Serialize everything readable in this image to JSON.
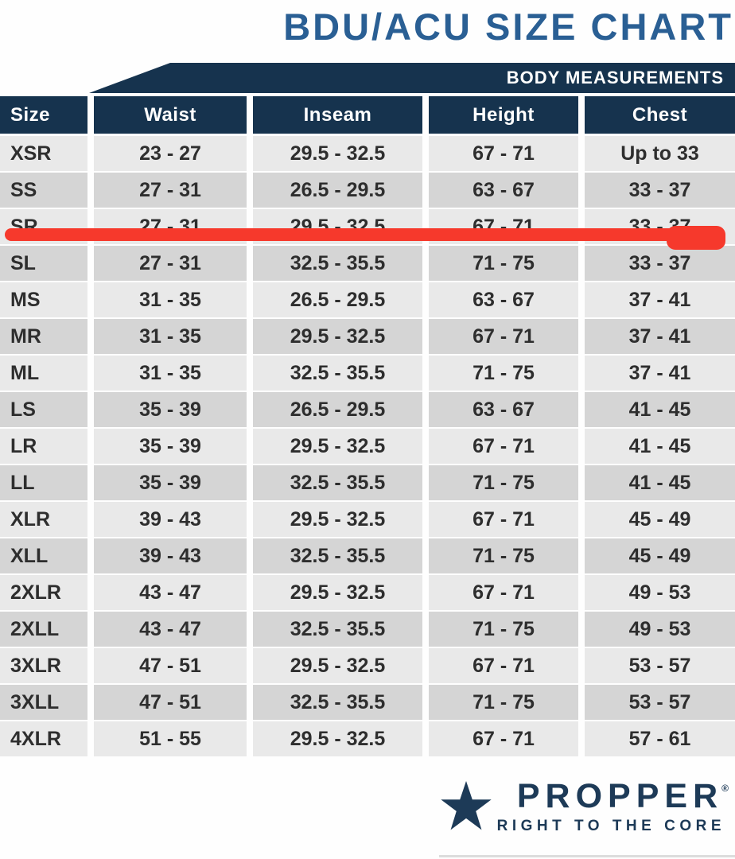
{
  "title": "BDU/ACU SIZE CHART",
  "banner_label": "BODY MEASUREMENTS",
  "chart_data": {
    "type": "table",
    "title": "BDU/ACU SIZE CHART",
    "group_header": "BODY MEASUREMENTS",
    "columns": [
      "Size",
      "Waist",
      "Inseam",
      "Height",
      "Chest"
    ],
    "rows": [
      {
        "size": "XSR",
        "waist": "23 - 27",
        "inseam": "29.5 - 32.5",
        "height": "67 - 71",
        "chest": "Up to 33"
      },
      {
        "size": "SS",
        "waist": "27 - 31",
        "inseam": "26.5 - 29.5",
        "height": "63 - 67",
        "chest": "33 - 37"
      },
      {
        "size": "SR",
        "waist": "27 - 31",
        "inseam": "29.5 - 32.5",
        "height": "67 - 71",
        "chest": "33 - 37"
      },
      {
        "size": "SL",
        "waist": "27 - 31",
        "inseam": "32.5 - 35.5",
        "height": "71 - 75",
        "chest": "33 - 37"
      },
      {
        "size": "MS",
        "waist": "31 - 35",
        "inseam": "26.5 - 29.5",
        "height": "63 - 67",
        "chest": "37 - 41"
      },
      {
        "size": "MR",
        "waist": "31 - 35",
        "inseam": "29.5 - 32.5",
        "height": "67 - 71",
        "chest": "37 - 41"
      },
      {
        "size": "ML",
        "waist": "31 - 35",
        "inseam": "32.5 - 35.5",
        "height": "71 - 75",
        "chest": "37 - 41"
      },
      {
        "size": "LS",
        "waist": "35 - 39",
        "inseam": "26.5 - 29.5",
        "height": "63 - 67",
        "chest": "41 - 45"
      },
      {
        "size": "LR",
        "waist": "35 - 39",
        "inseam": "29.5 - 32.5",
        "height": "67 - 71",
        "chest": "41 - 45"
      },
      {
        "size": "LL",
        "waist": "35 - 39",
        "inseam": "32.5 - 35.5",
        "height": "71 - 75",
        "chest": "41 - 45"
      },
      {
        "size": "XLR",
        "waist": "39 - 43",
        "inseam": "29.5 - 32.5",
        "height": "67 - 71",
        "chest": "45 - 49"
      },
      {
        "size": "XLL",
        "waist": "39 - 43",
        "inseam": "32.5 - 35.5",
        "height": "71 - 75",
        "chest": "45 - 49"
      },
      {
        "size": "2XLR",
        "waist": "43 - 47",
        "inseam": "29.5 - 32.5",
        "height": "67 - 71",
        "chest": "49 - 53"
      },
      {
        "size": "2XLL",
        "waist": "43 - 47",
        "inseam": "32.5 - 35.5",
        "height": "71 - 75",
        "chest": "49 - 53"
      },
      {
        "size": "3XLR",
        "waist": "47 - 51",
        "inseam": "29.5 - 32.5",
        "height": "67 - 71",
        "chest": "53 - 57"
      },
      {
        "size": "3XLL",
        "waist": "47 - 51",
        "inseam": "32.5 - 35.5",
        "height": "71 - 75",
        "chest": "53 - 57"
      },
      {
        "size": "4XLR",
        "waist": "51 - 55",
        "inseam": "29.5 - 32.5",
        "height": "67 - 71",
        "chest": "57 - 61"
      }
    ],
    "highlighted_row": "SR",
    "highlight_style": "red marker strike line across full row width"
  },
  "logo": {
    "brand": "PROPPER",
    "mark": "®",
    "tagline": "RIGHT TO THE CORE"
  },
  "colors": {
    "navy": "#16334e",
    "title_blue": "#2a5f94",
    "row_light": "#e9e9e9",
    "row_dark": "#d5d5d5",
    "highlight_red": "#f6392c",
    "logo_navy": "#1d3a57",
    "text": "#2e2e2e"
  }
}
